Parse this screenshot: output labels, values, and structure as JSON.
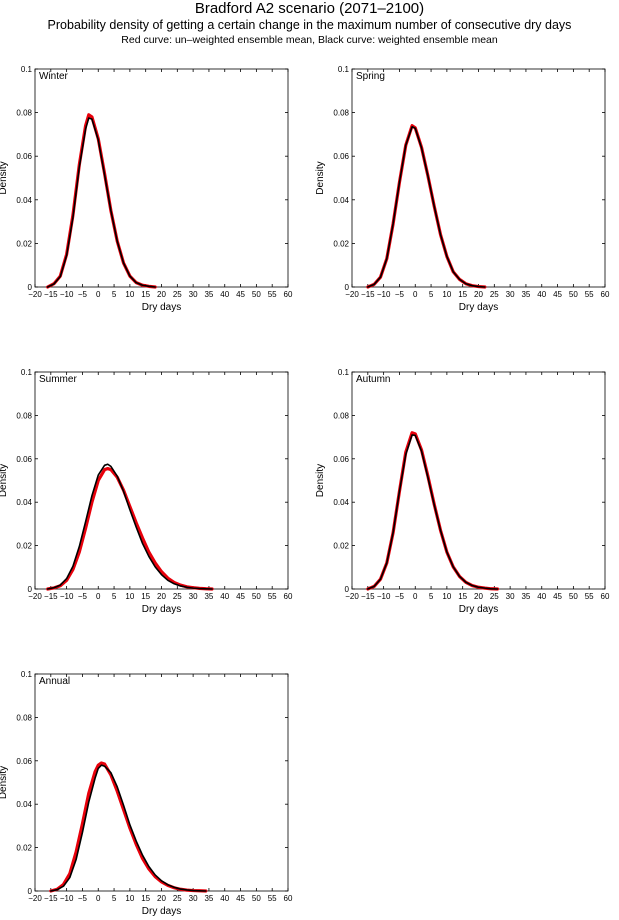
{
  "figure": {
    "title": "Bradford A2 scenario (2071–2100)",
    "subtitle": "Probability density of getting a certain change in the maximum number of consecutive dry days",
    "legend_note": "Red curve: un–weighted ensemble mean, Black curve: weighted ensemble mean"
  },
  "colors": {
    "unweighted": "#e8000b",
    "weighted": "#000000",
    "axis": "#000000"
  },
  "chart_data": [
    {
      "type": "line",
      "panel": "Winter",
      "xlabel": "Dry days",
      "ylabel": "Density",
      "xlim": [
        -20,
        60
      ],
      "ylim": [
        0,
        0.1
      ],
      "xticks": [
        -20,
        -15,
        -10,
        -5,
        0,
        5,
        10,
        15,
        20,
        25,
        30,
        35,
        40,
        45,
        50,
        55,
        60
      ],
      "xtick_labels": [
        "−20",
        "−15",
        "−10",
        "−5",
        "0",
        "5",
        "10",
        "15",
        "20",
        "25",
        "30",
        "35",
        "40",
        "45",
        "50",
        "55",
        "60"
      ],
      "yticks": [
        0,
        0.02,
        0.04,
        0.06,
        0.08,
        0.1
      ],
      "ytick_labels": [
        "0",
        "0.02",
        "0.04",
        "0.06",
        "0.08",
        "0.1"
      ],
      "grid": false,
      "series": [
        {
          "name": "un-weighted ensemble mean",
          "color": "#e8000b",
          "x": [
            -16,
            -14,
            -12,
            -10,
            -8,
            -6,
            -4,
            -3,
            -2,
            0,
            2,
            4,
            6,
            8,
            10,
            12,
            14,
            16,
            18
          ],
          "y": [
            0,
            0.0015,
            0.005,
            0.015,
            0.033,
            0.056,
            0.074,
            0.079,
            0.078,
            0.068,
            0.052,
            0.035,
            0.021,
            0.011,
            0.005,
            0.002,
            0.0008,
            0.0003,
            0
          ]
        },
        {
          "name": "weighted ensemble mean",
          "color": "#000000",
          "x": [
            -16,
            -14,
            -12,
            -10,
            -8,
            -6,
            -4,
            -3,
            -2,
            0,
            2,
            4,
            6,
            8,
            10,
            12,
            14,
            16,
            18
          ],
          "y": [
            0,
            0.0014,
            0.0048,
            0.0145,
            0.032,
            0.055,
            0.0725,
            0.0775,
            0.077,
            0.0675,
            0.0515,
            0.035,
            0.021,
            0.011,
            0.005,
            0.002,
            0.0008,
            0.0003,
            0
          ]
        }
      ]
    },
    {
      "type": "line",
      "panel": "Spring",
      "xlabel": "Dry days",
      "ylabel": "Density",
      "xlim": [
        -20,
        60
      ],
      "ylim": [
        0,
        0.1
      ],
      "xticks": [
        -20,
        -15,
        -10,
        -5,
        0,
        5,
        10,
        15,
        20,
        25,
        30,
        35,
        40,
        45,
        50,
        55,
        60
      ],
      "xtick_labels": [
        "−20",
        "−15",
        "−10",
        "−5",
        "0",
        "5",
        "10",
        "15",
        "20",
        "25",
        "30",
        "35",
        "40",
        "45",
        "50",
        "55",
        "60"
      ],
      "yticks": [
        0,
        0.02,
        0.04,
        0.06,
        0.08,
        0.1
      ],
      "ytick_labels": [
        "0",
        "0.02",
        "0.04",
        "0.06",
        "0.08",
        "0.1"
      ],
      "grid": false,
      "series": [
        {
          "name": "un-weighted ensemble mean",
          "color": "#e8000b",
          "x": [
            -15,
            -13,
            -11,
            -9,
            -7,
            -5,
            -3,
            -1,
            0,
            2,
            4,
            6,
            8,
            10,
            12,
            14,
            16,
            18,
            20,
            22
          ],
          "y": [
            0,
            0.0012,
            0.0045,
            0.013,
            0.029,
            0.048,
            0.065,
            0.074,
            0.073,
            0.064,
            0.051,
            0.037,
            0.024,
            0.014,
            0.007,
            0.0035,
            0.0015,
            0.0006,
            0.0002,
            0
          ]
        },
        {
          "name": "weighted ensemble mean",
          "color": "#000000",
          "x": [
            -15,
            -13,
            -11,
            -9,
            -7,
            -5,
            -3,
            -1,
            0,
            2,
            4,
            6,
            8,
            10,
            12,
            14,
            16,
            18,
            20,
            22
          ],
          "y": [
            0,
            0.0012,
            0.0045,
            0.013,
            0.029,
            0.048,
            0.065,
            0.0735,
            0.0728,
            0.0638,
            0.051,
            0.037,
            0.024,
            0.014,
            0.007,
            0.0035,
            0.0015,
            0.0006,
            0.0002,
            0
          ]
        }
      ]
    },
    {
      "type": "line",
      "panel": "Summer",
      "xlabel": "Dry days",
      "ylabel": "Density",
      "xlim": [
        -20,
        60
      ],
      "ylim": [
        0,
        0.1
      ],
      "xticks": [
        -20,
        -15,
        -10,
        -5,
        0,
        5,
        10,
        15,
        20,
        25,
        30,
        35,
        40,
        45,
        50,
        55,
        60
      ],
      "xtick_labels": [
        "−20",
        "−15",
        "−10",
        "−5",
        "0",
        "5",
        "10",
        "15",
        "20",
        "25",
        "30",
        "35",
        "40",
        "45",
        "50",
        "55",
        "60"
      ],
      "yticks": [
        0,
        0.02,
        0.04,
        0.06,
        0.08,
        0.1
      ],
      "ytick_labels": [
        "0",
        "0.02",
        "0.04",
        "0.06",
        "0.08",
        "0.1"
      ],
      "grid": false,
      "series": [
        {
          "name": "un-weighted ensemble mean",
          "color": "#e8000b",
          "x": [
            -16,
            -14,
            -12,
            -10,
            -8,
            -6,
            -4,
            -2,
            0,
            2,
            3,
            4,
            6,
            8,
            10,
            12,
            14,
            16,
            18,
            20,
            22,
            24,
            26,
            28,
            30,
            32,
            34,
            36
          ],
          "y": [
            0,
            0.0005,
            0.0015,
            0.004,
            0.009,
            0.017,
            0.028,
            0.04,
            0.05,
            0.055,
            0.0555,
            0.055,
            0.0515,
            0.0455,
            0.038,
            0.0305,
            0.0235,
            0.017,
            0.012,
            0.008,
            0.005,
            0.003,
            0.0018,
            0.001,
            0.0006,
            0.0003,
            0.0001,
            0
          ]
        },
        {
          "name": "weighted ensemble mean",
          "color": "#000000",
          "x": [
            -16,
            -14,
            -12,
            -10,
            -8,
            -6,
            -4,
            -2,
            0,
            2,
            3,
            4,
            6,
            8,
            10,
            12,
            14,
            16,
            18,
            20,
            22,
            24,
            26,
            28,
            30,
            32,
            34,
            36
          ],
          "y": [
            0,
            0.0006,
            0.0018,
            0.0048,
            0.0105,
            0.0195,
            0.031,
            0.043,
            0.0525,
            0.057,
            0.0575,
            0.0565,
            0.052,
            0.045,
            0.0365,
            0.0285,
            0.021,
            0.015,
            0.0102,
            0.0066,
            0.004,
            0.0024,
            0.0014,
            0.0008,
            0.0004,
            0.0002,
            0.0001,
            0
          ]
        }
      ]
    },
    {
      "type": "line",
      "panel": "Autumn",
      "xlabel": "Dry days",
      "ylabel": "Density",
      "xlim": [
        -20,
        60
      ],
      "ylim": [
        0,
        0.1
      ],
      "xticks": [
        -20,
        -15,
        -10,
        -5,
        0,
        5,
        10,
        15,
        20,
        25,
        30,
        35,
        40,
        45,
        50,
        55,
        60
      ],
      "xtick_labels": [
        "−20",
        "−15",
        "−10",
        "−5",
        "0",
        "5",
        "10",
        "15",
        "20",
        "25",
        "30",
        "35",
        "40",
        "45",
        "50",
        "55",
        "60"
      ],
      "yticks": [
        0,
        0.02,
        0.04,
        0.06,
        0.08,
        0.1
      ],
      "ytick_labels": [
        "0",
        "0.02",
        "0.04",
        "0.06",
        "0.08",
        "0.1"
      ],
      "grid": false,
      "series": [
        {
          "name": "un-weighted ensemble mean",
          "color": "#e8000b",
          "x": [
            -15,
            -13,
            -11,
            -9,
            -7,
            -5,
            -3,
            -1,
            0,
            2,
            4,
            6,
            8,
            10,
            12,
            14,
            16,
            18,
            20,
            22,
            24,
            26
          ],
          "y": [
            0,
            0.0012,
            0.0045,
            0.012,
            0.026,
            0.045,
            0.063,
            0.072,
            0.0715,
            0.064,
            0.052,
            0.039,
            0.027,
            0.017,
            0.0102,
            0.0058,
            0.0031,
            0.0016,
            0.0008,
            0.0004,
            0.0001,
            0
          ]
        },
        {
          "name": "weighted ensemble mean",
          "color": "#000000",
          "x": [
            -15,
            -13,
            -11,
            -9,
            -7,
            -5,
            -3,
            -1,
            0,
            2,
            4,
            6,
            8,
            10,
            12,
            14,
            16,
            18,
            20,
            22,
            24,
            26
          ],
          "y": [
            0,
            0.0012,
            0.0045,
            0.012,
            0.026,
            0.045,
            0.062,
            0.071,
            0.0708,
            0.0635,
            0.0515,
            0.0388,
            0.027,
            0.017,
            0.0102,
            0.0058,
            0.0031,
            0.0016,
            0.0008,
            0.0004,
            0.0001,
            0
          ]
        }
      ]
    },
    {
      "type": "line",
      "panel": "Annual",
      "xlabel": "Dry days",
      "ylabel": "Density",
      "xlim": [
        -20,
        60
      ],
      "ylim": [
        0,
        0.1
      ],
      "xticks": [
        -20,
        -15,
        -10,
        -5,
        0,
        5,
        10,
        15,
        20,
        25,
        30,
        35,
        40,
        45,
        50,
        55,
        60
      ],
      "xtick_labels": [
        "−20",
        "−15",
        "−10",
        "−5",
        "0",
        "5",
        "10",
        "15",
        "20",
        "25",
        "30",
        "35",
        "40",
        "45",
        "50",
        "55",
        "60"
      ],
      "yticks": [
        0,
        0.02,
        0.04,
        0.06,
        0.08,
        0.1
      ],
      "ytick_labels": [
        "0",
        "0.02",
        "0.04",
        "0.06",
        "0.08",
        "0.1"
      ],
      "grid": false,
      "series": [
        {
          "name": "un-weighted ensemble mean",
          "color": "#e8000b",
          "x": [
            -15,
            -13,
            -11,
            -9,
            -7,
            -5,
            -3,
            -1,
            0,
            1,
            2,
            4,
            6,
            8,
            10,
            12,
            14,
            16,
            18,
            20,
            22,
            24,
            26,
            28,
            30,
            32,
            34
          ],
          "y": [
            0,
            0.0008,
            0.003,
            0.008,
            0.018,
            0.031,
            0.045,
            0.055,
            0.058,
            0.059,
            0.0585,
            0.0535,
            0.046,
            0.0375,
            0.029,
            0.0215,
            0.015,
            0.0102,
            0.0066,
            0.0042,
            0.0026,
            0.0015,
            0.0008,
            0.0004,
            0.0002,
            0.0001,
            0
          ]
        },
        {
          "name": "weighted ensemble mean",
          "color": "#000000",
          "x": [
            -15,
            -13,
            -11,
            -9,
            -7,
            -5,
            -3,
            -1,
            0,
            1,
            2,
            4,
            6,
            8,
            10,
            12,
            14,
            16,
            18,
            20,
            22,
            24,
            26,
            28,
            30,
            32,
            34
          ],
          "y": [
            0,
            0.0006,
            0.0022,
            0.0062,
            0.0145,
            0.027,
            0.041,
            0.052,
            0.0565,
            0.058,
            0.0575,
            0.0545,
            0.048,
            0.0395,
            0.0305,
            0.023,
            0.0165,
            0.0113,
            0.0074,
            0.0047,
            0.0029,
            0.0017,
            0.0009,
            0.0005,
            0.0002,
            0.0001,
            0
          ]
        }
      ]
    }
  ]
}
